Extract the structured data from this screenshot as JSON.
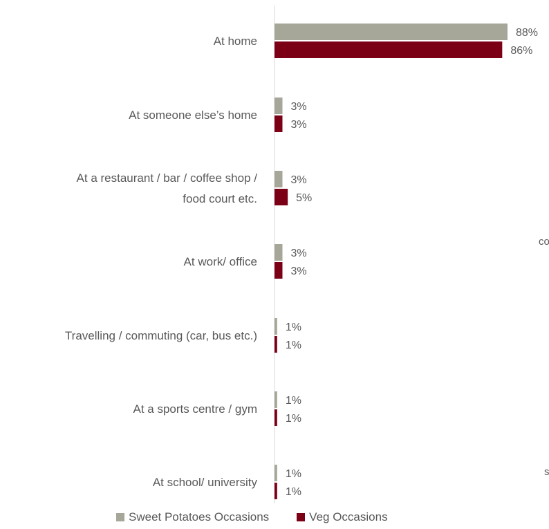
{
  "chart_data": {
    "type": "bar",
    "orientation": "horizontal",
    "categories": [
      [
        "At home"
      ],
      [
        "At someone else’s home"
      ],
      [
        "At a restaurant / bar / coffee shop /",
        "food court etc."
      ],
      [
        "At work/ office"
      ],
      [
        "Travelling / commuting (car, bus etc.)"
      ],
      [
        "At a sports centre / gym"
      ],
      [
        "At school/ university"
      ]
    ],
    "series": [
      {
        "name": "Sweet Potatoes Occasions",
        "color": "#A6A699",
        "values": [
          88,
          3,
          3,
          3,
          1,
          1,
          1
        ],
        "labels": [
          "88%",
          "3%",
          "3%",
          "3%",
          "1%",
          "1%",
          "1%"
        ]
      },
      {
        "name": "Veg Occasions",
        "color": "#7B0016",
        "values": [
          86,
          3,
          5,
          3,
          1,
          1,
          1
        ],
        "labels": [
          "86%",
          "3%",
          "5%",
          "3%",
          "1%",
          "1%",
          "1%"
        ]
      }
    ],
    "xlim": [
      0,
      100
    ],
    "grid": false,
    "legend_position": "bottom"
  },
  "stray_text": {
    "a": "co",
    "b": "s"
  }
}
